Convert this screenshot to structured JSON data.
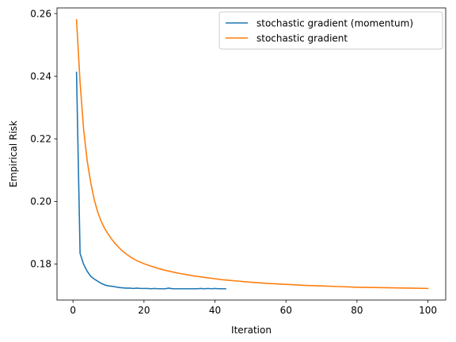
{
  "chart_data": {
    "type": "line",
    "xlabel": "Iteration",
    "ylabel": "Empirical Risk",
    "xlim": [
      -4.5,
      105
    ],
    "ylim": [
      0.1685,
      0.2618
    ],
    "xticks": [
      0,
      20,
      40,
      60,
      80,
      100
    ],
    "yticks": [
      0.18,
      0.2,
      0.22,
      0.24,
      0.26
    ],
    "ytick_labels": [
      "0.18",
      "0.20",
      "0.22",
      "0.24",
      "0.26"
    ],
    "grid": false,
    "legend_position": "top-right",
    "series": [
      {
        "name": "stochastic gradient (momentum)",
        "color": "#1f77b4",
        "x": [
          1,
          2,
          3,
          4,
          5,
          6,
          7,
          8,
          9,
          10,
          11,
          12,
          13,
          14,
          15,
          16,
          17,
          18,
          19,
          20,
          21,
          22,
          23,
          24,
          25,
          26,
          27,
          28,
          29,
          30,
          31,
          32,
          33,
          34,
          35,
          36,
          37,
          38,
          39,
          40,
          41,
          42,
          43
        ],
        "y": [
          0.2412,
          0.1834,
          0.1799,
          0.1777,
          0.1761,
          0.1752,
          0.1745,
          0.1738,
          0.1733,
          0.173,
          0.1729,
          0.1727,
          0.1725,
          0.1724,
          0.1723,
          0.1723,
          0.1722,
          0.1723,
          0.1722,
          0.1722,
          0.1722,
          0.1721,
          0.1722,
          0.1721,
          0.1721,
          0.1721,
          0.1723,
          0.1721,
          0.1721,
          0.1721,
          0.1721,
          0.1721,
          0.1721,
          0.1721,
          0.1721,
          0.1722,
          0.1721,
          0.1722,
          0.1721,
          0.1722,
          0.1721,
          0.1721,
          0.1721
        ]
      },
      {
        "name": "stochastic gradient",
        "color": "#ff7f0e",
        "x": [
          1,
          2,
          3,
          4,
          5,
          6,
          7,
          8,
          9,
          10,
          11,
          12,
          13,
          14,
          15,
          16,
          17,
          18,
          19,
          20,
          22,
          24,
          26,
          28,
          30,
          32,
          34,
          36,
          38,
          40,
          42,
          44,
          46,
          48,
          50,
          55,
          60,
          65,
          70,
          75,
          80,
          85,
          90,
          95,
          100
        ],
        "y": [
          0.258,
          0.238,
          0.223,
          0.213,
          0.206,
          0.2005,
          0.1965,
          0.1935,
          0.1912,
          0.1894,
          0.1878,
          0.1864,
          0.1852,
          0.1841,
          0.1832,
          0.1824,
          0.1817,
          0.1811,
          0.1806,
          0.1801,
          0.1793,
          0.1786,
          0.178,
          0.1775,
          0.177,
          0.1766,
          0.1762,
          0.1759,
          0.1756,
          0.1753,
          0.175,
          0.1748,
          0.1746,
          0.1744,
          0.1742,
          0.1738,
          0.1735,
          0.1732,
          0.173,
          0.1728,
          0.1726,
          0.1725,
          0.1724,
          0.1723,
          0.1722
        ]
      }
    ]
  }
}
